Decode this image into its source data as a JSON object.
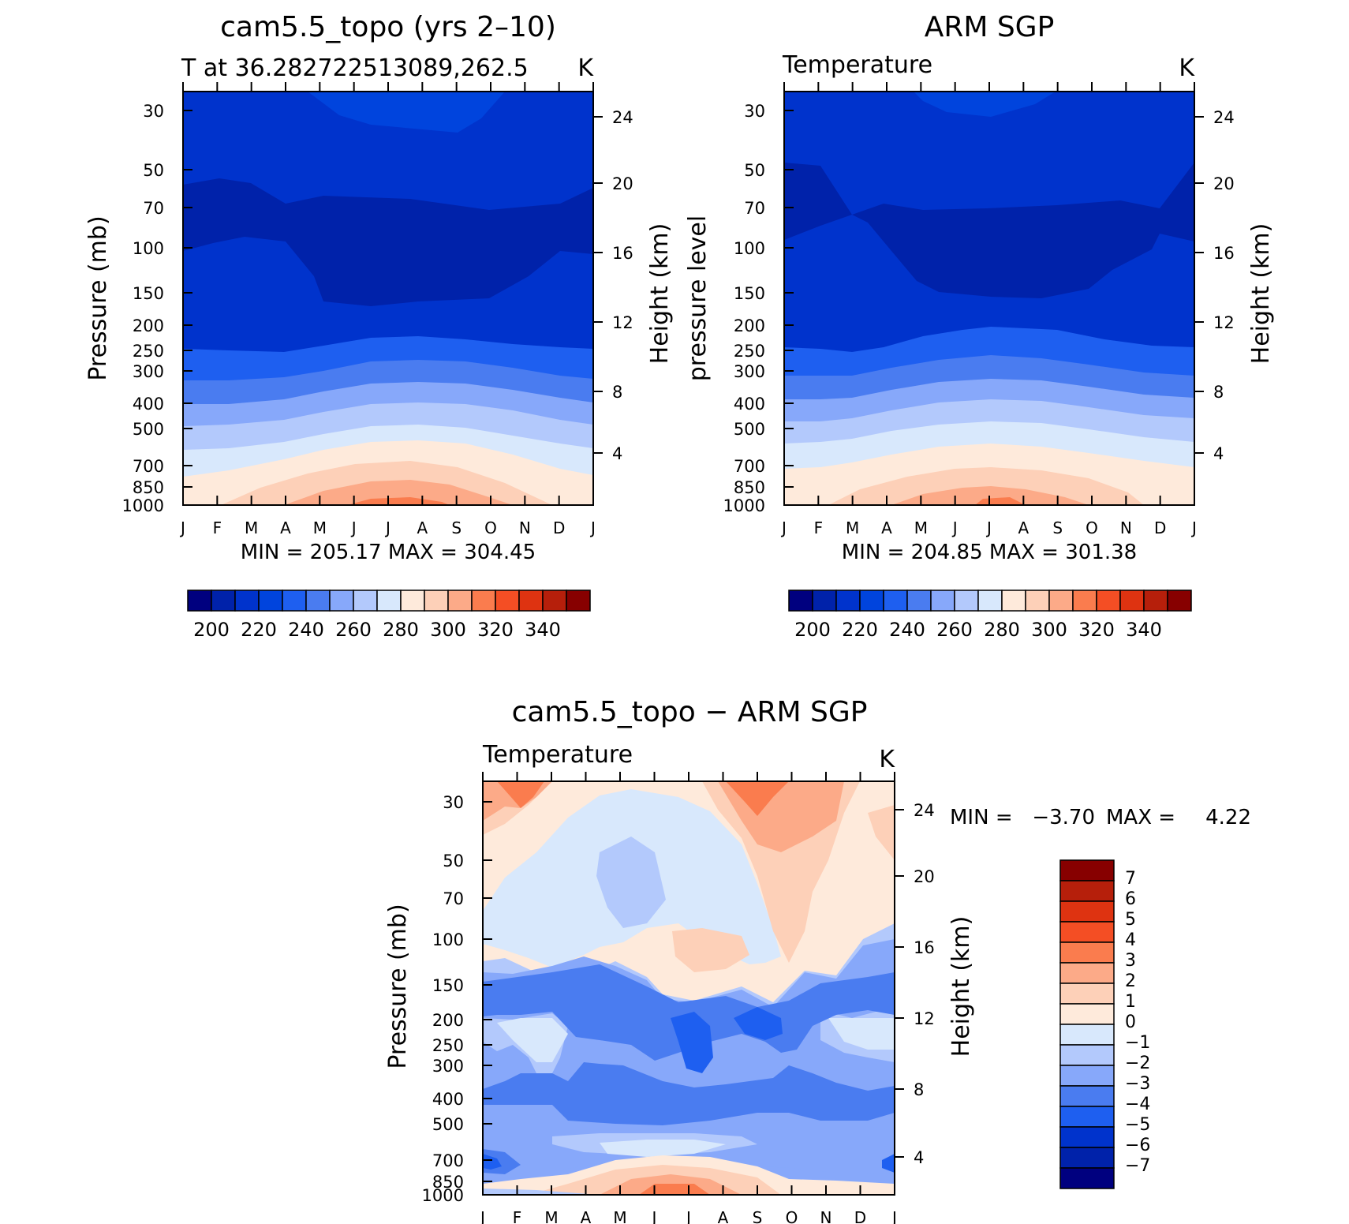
{
  "chart_data": [
    {
      "type": "contour",
      "title": "cam5.5_topo (yrs 2–10)",
      "subtitle_left": "T at 36.282722513089,262.5",
      "units": "K",
      "ylabel": "Pressure (mb)",
      "ylabel_right": "Height (km)",
      "months": [
        "J",
        "F",
        "M",
        "A",
        "M",
        "J",
        "J",
        "A",
        "S",
        "O",
        "N",
        "D",
        "J"
      ],
      "pressure_ticks": [
        "30",
        "50",
        "70",
        "100",
        "150",
        "200",
        "250",
        "300",
        "400",
        "500",
        "700",
        "850",
        "1000"
      ],
      "height_ticks": [
        "24",
        "20",
        "16",
        "12",
        "8",
        "4"
      ],
      "stats": "MIN = 205.17 MAX = 304.45",
      "colorbar_labels": [
        "200",
        "220",
        "240",
        "260",
        "280",
        "300",
        "320",
        "340"
      ],
      "color_levels": [
        "#00007f",
        "#0022aa",
        "#0033cc",
        "#0044dd",
        "#1e5ff0",
        "#4a7cf0",
        "#87a8fa",
        "#b3c9fc",
        "#d8e8fc",
        "#feeadb",
        "#fdd0b8",
        "#fcaa88",
        "#fa7c4e",
        "#f44e24",
        "#de3311",
        "#b61f0b",
        "#870000"
      ]
    },
    {
      "type": "contour",
      "title": "ARM SGP",
      "subtitle_left": "Temperature",
      "units": "K",
      "ylabel": "pressure level",
      "ylabel_right": "Height (km)",
      "months": [
        "J",
        "F",
        "M",
        "A",
        "M",
        "J",
        "J",
        "A",
        "S",
        "O",
        "N",
        "D",
        "J"
      ],
      "pressure_ticks": [
        "30",
        "50",
        "70",
        "100",
        "150",
        "200",
        "250",
        "300",
        "400",
        "500",
        "700",
        "850",
        "1000"
      ],
      "height_ticks": [
        "24",
        "20",
        "16",
        "12",
        "8",
        "4"
      ],
      "stats": "MIN = 204.85 MAX = 301.38",
      "colorbar_labels": [
        "200",
        "220",
        "240",
        "260",
        "280",
        "300",
        "320",
        "340"
      ]
    },
    {
      "type": "contour",
      "title": "cam5.5_topo − ARM SGP",
      "subtitle_left": "Temperature",
      "units": "K",
      "ylabel": "Pressure (mb)",
      "ylabel_right": "Height (km)",
      "months": [
        "J",
        "F",
        "M",
        "A",
        "M",
        "J",
        "J",
        "A",
        "S",
        "O",
        "N",
        "D",
        "J"
      ],
      "pressure_ticks": [
        "30",
        "50",
        "70",
        "100",
        "150",
        "200",
        "250",
        "300",
        "400",
        "500",
        "700",
        "850",
        "1000"
      ],
      "height_ticks": [
        "24",
        "20",
        "16",
        "12",
        "8",
        "4"
      ],
      "stats_min_label": "MIN =",
      "stats_min": "−3.70",
      "stats_max_label": "MAX =",
      "stats_max": "4.22",
      "colorbar_labels": [
        "7",
        "6",
        "5",
        "4",
        "3",
        "2",
        "1",
        "0",
        "−1",
        "−2",
        "−3",
        "−4",
        "−5",
        "−6",
        "−7"
      ],
      "color_levels": [
        "#870000",
        "#b61f0b",
        "#de3311",
        "#f44e24",
        "#fa7c4e",
        "#fcaa88",
        "#fdd0b8",
        "#feeadb",
        "#d8e8fc",
        "#b3c9fc",
        "#87a8fa",
        "#4a7cf0",
        "#1e5ff0",
        "#0033cc",
        "#0022aa",
        "#00007f"
      ]
    }
  ]
}
